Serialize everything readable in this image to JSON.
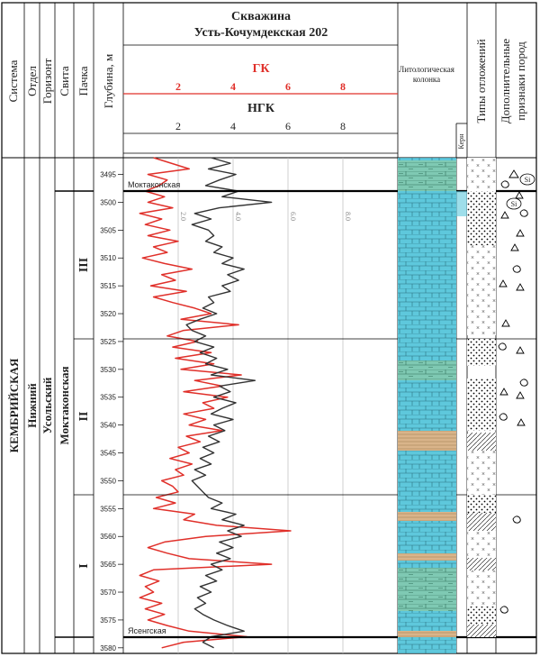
{
  "header": {
    "columns": [
      "Система",
      "Отдел",
      "Горизонт",
      "Свита",
      "Пачка"
    ],
    "depth_label": "Глубина, м",
    "well_title_line1": "Скважина",
    "well_title_line2": "Усть-Кочумдекская 202",
    "gk_label": "ГК",
    "ngk_label": "НГК",
    "lith_label_line1": "Литологическая",
    "lith_label_line2": "колонка",
    "core_label": "Керн",
    "deposit_types_label": "Типы отложений",
    "extra_label_line1": "Дополнительные",
    "extra_label_line2": "признаки пород"
  },
  "stratigraphy": {
    "system": "КЕМБРИЙСКАЯ",
    "department": "Нижний",
    "horizon": "Усольский",
    "suite": "Моктаконская",
    "packs": [
      "III",
      "II",
      "I"
    ]
  },
  "markers": {
    "top": "Моктаконская",
    "bottom": "Ясенгская"
  },
  "log_grid_labels": [
    "2.0",
    "4.0",
    "6.0",
    "8.0"
  ],
  "si_label": "Si",
  "colors": {
    "gk": "#e0302a",
    "ngk": "#333333",
    "limestone": "#5ec8dc",
    "dolomite_band": "#7fc9b3",
    "sandy_band": "#d9b48a",
    "grid": "#bbbbbb"
  },
  "chart_data": {
    "type": "line",
    "x_scale_ticks": [
      2,
      4,
      6,
      8
    ],
    "depth_ticks": [
      3495,
      3500,
      3505,
      3510,
      3515,
      3520,
      3525,
      3530,
      3535,
      3540,
      3545,
      3550,
      3555,
      3560,
      3565,
      3570,
      3575,
      3580
    ],
    "depth_range": [
      3492,
      3581
    ],
    "x_range": [
      0,
      10
    ],
    "series": [
      {
        "name": "ГК",
        "points": [
          [
            3492,
            1.1
          ],
          [
            3494,
            2.4
          ],
          [
            3495,
            0.9
          ],
          [
            3496,
            1.6
          ],
          [
            3497,
            1.3
          ],
          [
            3498,
            0.8
          ],
          [
            3499,
            1.5
          ],
          [
            3500,
            0.9
          ],
          [
            3501,
            1.8
          ],
          [
            3502,
            0.6
          ],
          [
            3503,
            1.4
          ],
          [
            3504,
            0.8
          ],
          [
            3505,
            1.7
          ],
          [
            3506,
            0.9
          ],
          [
            3507,
            2.0
          ],
          [
            3508,
            1.1
          ],
          [
            3509,
            1.6
          ],
          [
            3510,
            0.7
          ],
          [
            3511,
            1.5
          ],
          [
            3512,
            2.5
          ],
          [
            3513,
            1.4
          ],
          [
            3514,
            1.9
          ],
          [
            3515,
            1.0
          ],
          [
            3516,
            2.3
          ],
          [
            3517,
            1.1
          ],
          [
            3518,
            1.8
          ],
          [
            3519,
            2.6
          ],
          [
            3520,
            3.2
          ],
          [
            3521,
            2.1
          ],
          [
            3522,
            4.2
          ],
          [
            3523,
            2.2
          ],
          [
            3524,
            1.6
          ],
          [
            3525,
            2.7
          ],
          [
            3526,
            1.8
          ],
          [
            3527,
            3.2
          ],
          [
            3528,
            1.9
          ],
          [
            3529,
            3.3
          ],
          [
            3530,
            2.1
          ],
          [
            3531,
            4.3
          ],
          [
            3532,
            2.6
          ],
          [
            3533,
            3.6
          ],
          [
            3534,
            2.2
          ],
          [
            3535,
            3.8
          ],
          [
            3536,
            2.9
          ],
          [
            3537,
            3.3
          ],
          [
            3538,
            2.2
          ],
          [
            3539,
            3.0
          ],
          [
            3540,
            2.4
          ],
          [
            3541,
            3.6
          ],
          [
            3542,
            2.3
          ],
          [
            3543,
            2.8
          ],
          [
            3544,
            2.0
          ],
          [
            3545,
            2.4
          ],
          [
            3546,
            1.7
          ],
          [
            3547,
            2.5
          ],
          [
            3548,
            1.9
          ],
          [
            3549,
            2.2
          ],
          [
            3550,
            1.4
          ],
          [
            3551,
            1.8
          ],
          [
            3552,
            2.0
          ],
          [
            3553,
            1.2
          ],
          [
            3554,
            1.9
          ],
          [
            3555,
            1.1
          ],
          [
            3556,
            2.6
          ],
          [
            3557,
            2.2
          ],
          [
            3558,
            3.4
          ],
          [
            3559,
            6.1
          ],
          [
            3560,
            3.0
          ],
          [
            3561,
            1.5
          ],
          [
            3562,
            0.9
          ],
          [
            3563,
            1.6
          ],
          [
            3564,
            2.4
          ],
          [
            3565,
            5.4
          ],
          [
            3566,
            1.1
          ],
          [
            3567,
            0.6
          ],
          [
            3568,
            1.3
          ],
          [
            3569,
            0.8
          ],
          [
            3570,
            1.1
          ],
          [
            3571,
            0.6
          ],
          [
            3572,
            1.4
          ],
          [
            3573,
            0.8
          ],
          [
            3574,
            1.5
          ],
          [
            3575,
            0.9
          ],
          [
            3576,
            1.6
          ],
          [
            3577,
            2.4
          ],
          [
            3578,
            4.5
          ],
          [
            3579,
            2.2
          ],
          [
            3580,
            1.4
          ]
        ]
      },
      {
        "name": "НГК",
        "points": [
          [
            3492,
            3.2
          ],
          [
            3493,
            3.9
          ],
          [
            3494,
            3.1
          ],
          [
            3495,
            4.1
          ],
          [
            3496,
            3.5
          ],
          [
            3497,
            3.0
          ],
          [
            3498,
            4.2
          ],
          [
            3499,
            3.6
          ],
          [
            3500,
            5.4
          ],
          [
            3501,
            3.5
          ],
          [
            3502,
            2.6
          ],
          [
            3503,
            3.2
          ],
          [
            3504,
            2.5
          ],
          [
            3505,
            3.1
          ],
          [
            3506,
            3.3
          ],
          [
            3507,
            3.0
          ],
          [
            3508,
            3.6
          ],
          [
            3509,
            3.3
          ],
          [
            3510,
            4.0
          ],
          [
            3511,
            3.6
          ],
          [
            3512,
            4.4
          ],
          [
            3513,
            3.8
          ],
          [
            3514,
            4.2
          ],
          [
            3515,
            3.6
          ],
          [
            3516,
            3.9
          ],
          [
            3517,
            3.1
          ],
          [
            3518,
            3.3
          ],
          [
            3519,
            2.9
          ],
          [
            3520,
            3.4
          ],
          [
            3521,
            2.8
          ],
          [
            3522,
            2.3
          ],
          [
            3523,
            2.5
          ],
          [
            3524,
            3.0
          ],
          [
            3525,
            2.6
          ],
          [
            3526,
            3.3
          ],
          [
            3527,
            2.8
          ],
          [
            3528,
            3.4
          ],
          [
            3529,
            3.0
          ],
          [
            3530,
            3.8
          ],
          [
            3531,
            3.2
          ],
          [
            3532,
            4.8
          ],
          [
            3533,
            3.5
          ],
          [
            3534,
            3.9
          ],
          [
            3535,
            3.3
          ],
          [
            3536,
            4.1
          ],
          [
            3537,
            3.6
          ],
          [
            3538,
            3.2
          ],
          [
            3539,
            4.0
          ],
          [
            3540,
            3.3
          ],
          [
            3541,
            3.7
          ],
          [
            3542,
            3.1
          ],
          [
            3543,
            3.5
          ],
          [
            3544,
            2.9
          ],
          [
            3545,
            3.3
          ],
          [
            3546,
            2.8
          ],
          [
            3547,
            3.2
          ],
          [
            3548,
            2.6
          ],
          [
            3549,
            3.0
          ],
          [
            3550,
            2.5
          ],
          [
            3551,
            2.7
          ],
          [
            3552,
            2.9
          ],
          [
            3553,
            3.1
          ],
          [
            3554,
            3.6
          ],
          [
            3555,
            3.2
          ],
          [
            3556,
            4.1
          ],
          [
            3557,
            3.6
          ],
          [
            3558,
            4.4
          ],
          [
            3559,
            3.8
          ],
          [
            3560,
            4.3
          ],
          [
            3561,
            3.5
          ],
          [
            3562,
            4.0
          ],
          [
            3563,
            3.4
          ],
          [
            3564,
            3.9
          ],
          [
            3565,
            3.2
          ],
          [
            3566,
            3.6
          ],
          [
            3567,
            3.0
          ],
          [
            3568,
            3.4
          ],
          [
            3569,
            2.8
          ],
          [
            3570,
            3.2
          ],
          [
            3571,
            2.7
          ],
          [
            3572,
            3.0
          ],
          [
            3573,
            2.6
          ],
          [
            3574,
            2.9
          ],
          [
            3575,
            3.3
          ],
          [
            3576,
            3.8
          ],
          [
            3577,
            4.4
          ],
          [
            3578,
            3.2
          ],
          [
            3579,
            2.9
          ],
          [
            3580,
            3.3
          ]
        ]
      }
    ]
  }
}
